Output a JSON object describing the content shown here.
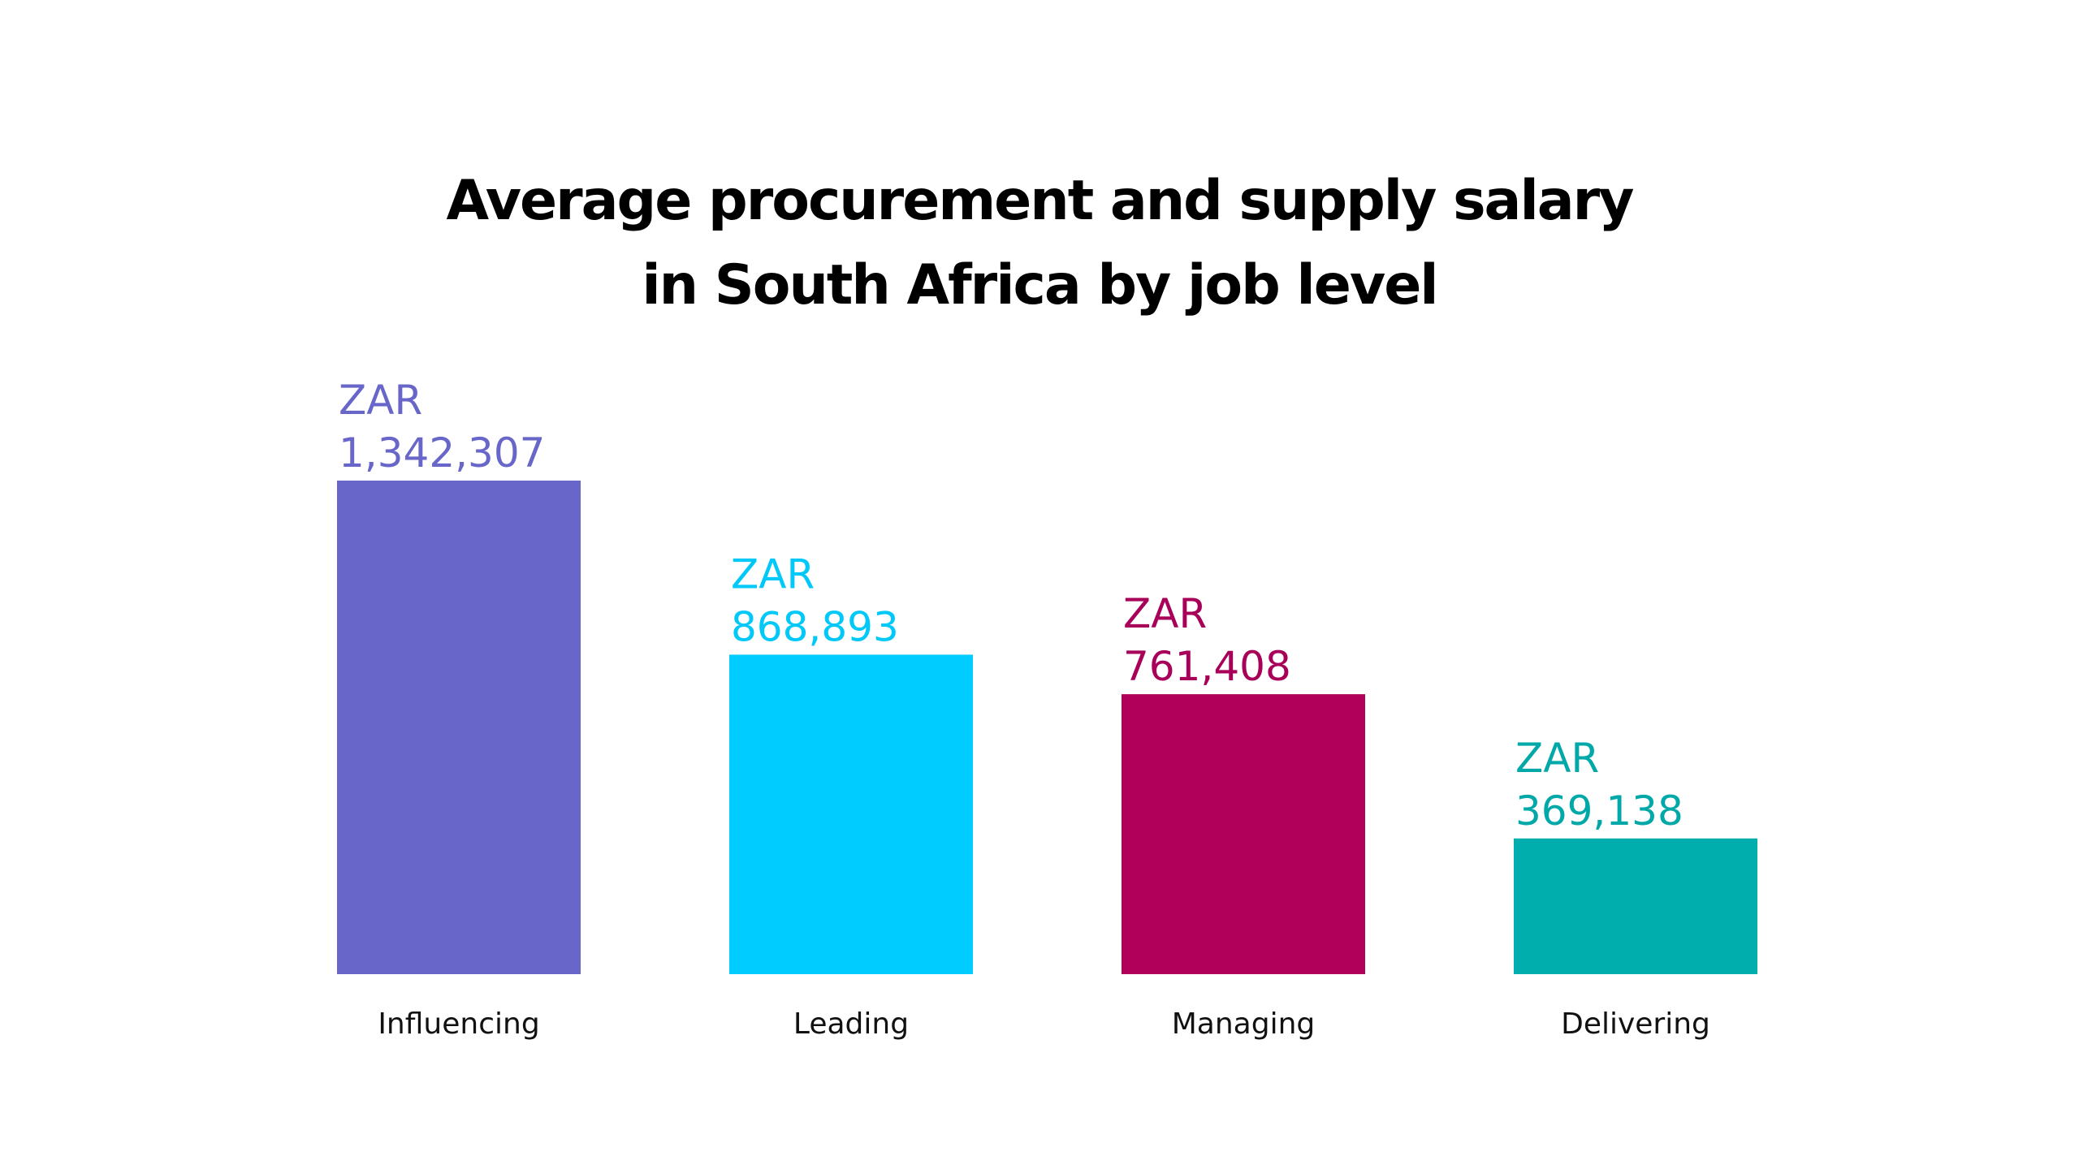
{
  "chart_data": {
    "type": "bar",
    "title_lines": [
      "Average procurement and supply salary",
      "in South Africa by job level"
    ],
    "categories": [
      "Influencing",
      "Leading",
      "Managing",
      "Delivering"
    ],
    "values": [
      1342307,
      868893,
      761408,
      369138
    ],
    "currency": "ZAR",
    "value_labels": [
      "1,342,307",
      "868,893",
      "761,408",
      "369,138"
    ],
    "colors": [
      "#6866c9",
      "#00ccff",
      "#b0005a",
      "#00aead"
    ],
    "label_colors": [
      "#6866c9",
      "#00c8f8",
      "#a80058",
      "#00a8a8"
    ],
    "xlabel": "",
    "ylabel": "",
    "ylim": [
      0,
      1342307
    ],
    "grid": false,
    "legend": "none"
  }
}
